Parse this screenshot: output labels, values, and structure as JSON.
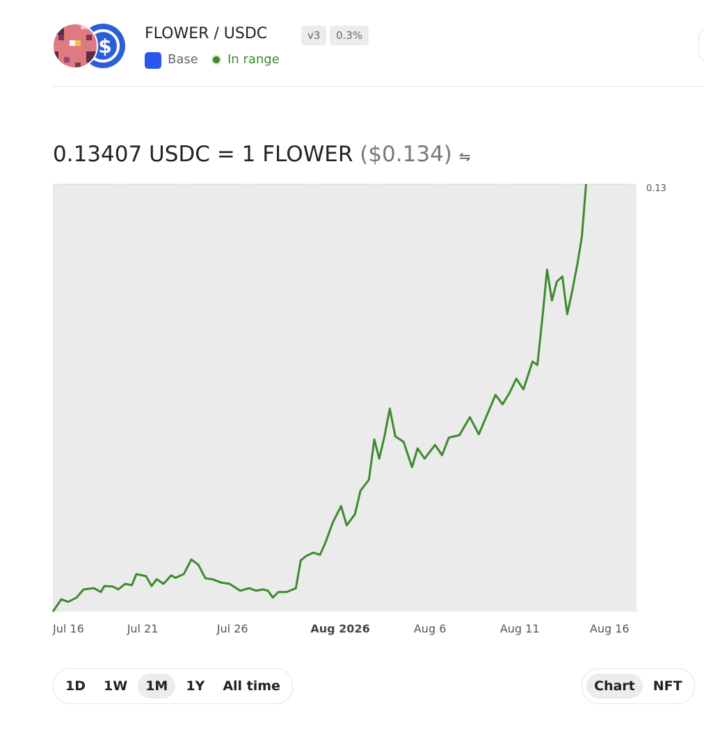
{
  "header": {
    "pair": "FLOWER / USDC",
    "version": "v3",
    "fee": "0.3%",
    "network": "Base",
    "status": "In range"
  },
  "price": {
    "quote": "0.13407 USDC = 1 FLOWER",
    "usd": "($0.134)"
  },
  "chart_data": {
    "type": "line",
    "color": "#3d8a2c",
    "x": [
      0,
      0.47,
      0.85,
      1.32,
      1.71,
      2.29,
      2.67,
      2.87,
      3.33,
      3.64,
      4.03,
      4.4,
      4.65,
      5.19,
      5.5,
      5.78,
      6.16,
      6.59,
      6.82,
      7.29,
      7.71,
      8.1,
      8.49,
      8.88,
      9.38,
      9.84,
      10.43,
      10.93,
      11.32,
      11.7,
      11.98,
      12.25,
      12.56,
      13.02,
      13.53,
      13.8,
      14.1,
      14.5,
      14.88,
      15.19,
      15.58,
      16.05,
      16.36,
      16.82,
      17.13,
      17.6,
      17.9,
      18.17,
      18.45,
      18.76,
      19.07,
      19.53,
      20.0,
      20.31,
      20.7,
      21.28,
      21.67,
      22.05,
      22.64,
      23.22,
      23.72,
      24.19,
      24.65,
      25.04,
      25.43,
      25.81,
      26.2,
      26.71,
      26.98,
      27.29,
      27.52,
      27.79,
      28.06,
      28.37,
      28.64,
      28.91,
      29.22,
      29.46,
      29.69
    ],
    "values": [
      0.03,
      0.0329,
      0.0323,
      0.0333,
      0.0352,
      0.0355,
      0.0346,
      0.036,
      0.0359,
      0.0352,
      0.0365,
      0.0362,
      0.0388,
      0.0383,
      0.036,
      0.0376,
      0.0365,
      0.0385,
      0.0379,
      0.0388,
      0.0422,
      0.041,
      0.0378,
      0.0376,
      0.0368,
      0.0365,
      0.0349,
      0.0355,
      0.0349,
      0.0352,
      0.0349,
      0.0333,
      0.0346,
      0.0346,
      0.0355,
      0.042,
      0.043,
      0.0438,
      0.0433,
      0.0463,
      0.0508,
      0.0547,
      0.0502,
      0.0528,
      0.0583,
      0.0609,
      0.0703,
      0.0658,
      0.0707,
      0.0775,
      0.071,
      0.0697,
      0.0638,
      0.0682,
      0.0658,
      0.069,
      0.0666,
      0.0707,
      0.0713,
      0.0755,
      0.0715,
      0.0762,
      0.0807,
      0.0785,
      0.0812,
      0.0845,
      0.082,
      0.0885,
      0.0877,
      0.1,
      0.11,
      0.1028,
      0.1072,
      0.1084,
      0.0996,
      0.1048,
      0.1116,
      0.1178,
      0.13
    ],
    "xlim": [
      0,
      32.5
    ],
    "xticks": [
      {
        "value": 0,
        "label": "Jul 16"
      },
      {
        "value": 5,
        "label": "Jul 21"
      },
      {
        "value": 10,
        "label": "Jul 26"
      },
      {
        "value": 16,
        "label": "Aug 2026"
      },
      {
        "value": 21,
        "label": "Aug 6"
      },
      {
        "value": 26,
        "label": "Aug 11"
      },
      {
        "value": 31,
        "label": "Aug 16"
      }
    ],
    "ylim": [
      0.03,
      0.13
    ],
    "yticks": [
      0.13
    ]
  },
  "time_ranges": [
    "1D",
    "1W",
    "1M",
    "1Y",
    "All time"
  ],
  "selected_range": 2,
  "views": [
    "Chart",
    "NFT"
  ],
  "selected_view": 0
}
